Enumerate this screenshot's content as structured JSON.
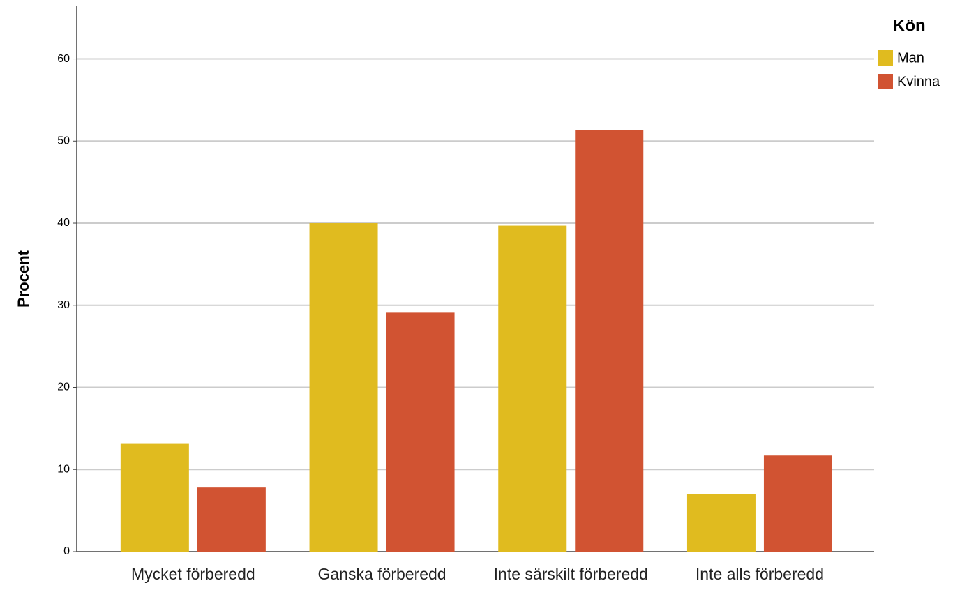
{
  "chart_data": {
    "type": "bar",
    "y_label": "Procent",
    "legend_title": "Kön",
    "legend_position": "top-right",
    "categories": [
      "Mycket förberedd",
      "Ganska förberedd",
      "Inte särskilt förberedd",
      "Inte alls förberedd"
    ],
    "series": [
      {
        "name": "Man",
        "color": "#e0bb1f",
        "values": [
          13.2,
          40.0,
          39.7,
          7.0
        ]
      },
      {
        "name": "Kvinna",
        "color": "#d15332",
        "values": [
          7.8,
          29.1,
          51.3,
          11.7
        ]
      }
    ],
    "ylim": [
      0,
      66.5
    ],
    "yticks": [
      0,
      10,
      20,
      30,
      40,
      50,
      60
    ],
    "grid": true
  }
}
